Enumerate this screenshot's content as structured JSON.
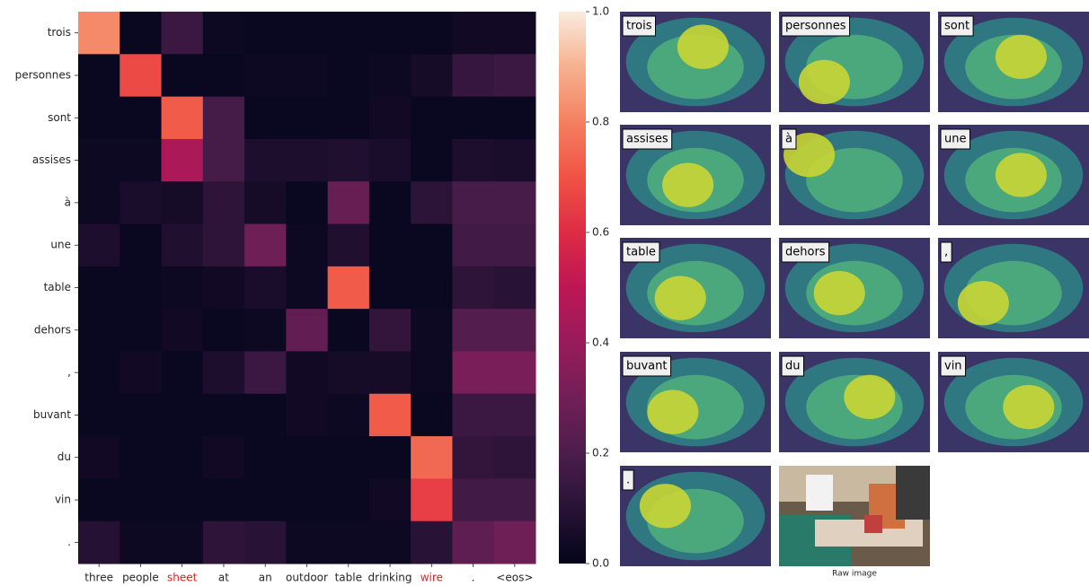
{
  "chart_data": {
    "type": "heatmap",
    "x_categories": [
      "three",
      "people",
      "sheet",
      "at",
      "an",
      "outdoor",
      "table",
      "drinking",
      "wire",
      ".",
      "<eos>"
    ],
    "y_categories": [
      "trois",
      "personnes",
      "sont",
      "assises",
      "à",
      "une",
      "table",
      "dehors",
      ",",
      "buvant",
      "du",
      "vin",
      "."
    ],
    "values": [
      [
        0.82,
        0.02,
        0.15,
        0.03,
        0.02,
        0.02,
        0.02,
        0.02,
        0.02,
        0.04,
        0.04
      ],
      [
        0.02,
        0.68,
        0.02,
        0.02,
        0.03,
        0.03,
        0.02,
        0.03,
        0.05,
        0.14,
        0.15
      ],
      [
        0.02,
        0.02,
        0.72,
        0.18,
        0.02,
        0.02,
        0.02,
        0.04,
        0.02,
        0.02,
        0.02
      ],
      [
        0.03,
        0.03,
        0.45,
        0.18,
        0.07,
        0.07,
        0.08,
        0.06,
        0.02,
        0.07,
        0.06
      ],
      [
        0.03,
        0.06,
        0.05,
        0.12,
        0.05,
        0.02,
        0.27,
        0.02,
        0.11,
        0.19,
        0.19
      ],
      [
        0.07,
        0.02,
        0.08,
        0.12,
        0.29,
        0.03,
        0.08,
        0.02,
        0.02,
        0.17,
        0.17
      ],
      [
        0.02,
        0.02,
        0.03,
        0.04,
        0.06,
        0.03,
        0.72,
        0.02,
        0.02,
        0.12,
        0.1
      ],
      [
        0.02,
        0.02,
        0.04,
        0.02,
        0.03,
        0.26,
        0.02,
        0.13,
        0.03,
        0.22,
        0.22
      ],
      [
        0.02,
        0.04,
        0.02,
        0.07,
        0.15,
        0.04,
        0.05,
        0.05,
        0.03,
        0.32,
        0.32
      ],
      [
        0.02,
        0.02,
        0.02,
        0.02,
        0.02,
        0.04,
        0.03,
        0.72,
        0.02,
        0.15,
        0.15
      ],
      [
        0.04,
        0.02,
        0.02,
        0.04,
        0.02,
        0.02,
        0.02,
        0.02,
        0.75,
        0.13,
        0.12
      ],
      [
        0.02,
        0.02,
        0.02,
        0.02,
        0.02,
        0.02,
        0.02,
        0.04,
        0.65,
        0.17,
        0.17
      ],
      [
        0.09,
        0.03,
        0.03,
        0.12,
        0.1,
        0.03,
        0.03,
        0.03,
        0.1,
        0.25,
        0.29
      ]
    ],
    "colormap": "rocket",
    "clim": [
      0,
      1
    ],
    "colorbar_ticks": [
      {
        "value": 0,
        "label": "0.0"
      },
      {
        "value": 0.2,
        "label": "0.2"
      },
      {
        "value": 0.4,
        "label": "0.4"
      },
      {
        "value": 0.6,
        "label": "0.6"
      },
      {
        "value": 0.8,
        "label": "0.8"
      },
      {
        "value": 1,
        "label": "1.0"
      }
    ],
    "highlight": {
      "indices": [
        2,
        8
      ],
      "color": "#e41a1c"
    }
  },
  "attention_maps": {
    "labels": [
      "trois",
      "personnes",
      "sont",
      "assises",
      "à",
      "une",
      "table",
      "dehors",
      ",",
      "buvant",
      "du",
      "vin",
      "."
    ],
    "raw_image_caption": "Raw image"
  }
}
